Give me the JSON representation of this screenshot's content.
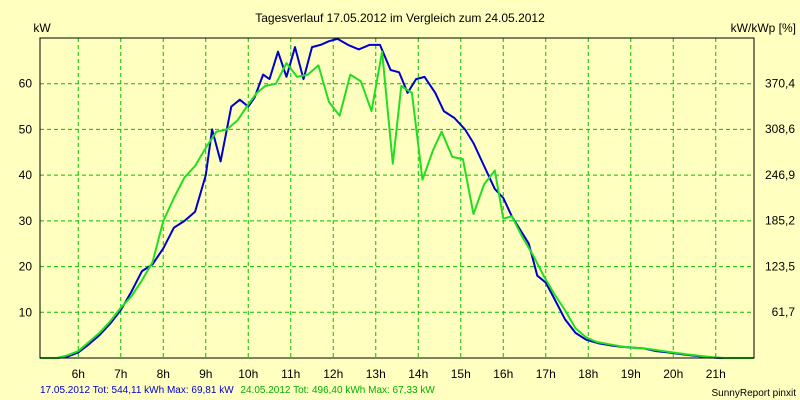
{
  "colors": {
    "background": "#FFFFC0",
    "grid": "#00C000",
    "series_1": "#0000CC",
    "series_2": "#22DD22"
  },
  "chart_data": {
    "type": "line",
    "title": "Tagesverlauf 17.05.2012 im Vergleich zum 24.05.2012",
    "ylabel_left": "kW",
    "ylabel_right": "kW/kWp [%]",
    "xlim": [
      5.1,
      21.9
    ],
    "ylim": [
      0,
      70
    ],
    "x_ticks": [
      6,
      7,
      8,
      9,
      10,
      11,
      12,
      13,
      14,
      15,
      16,
      17,
      18,
      19,
      20,
      21
    ],
    "x_tick_labels": [
      "6h",
      "7h",
      "8h",
      "9h",
      "10h",
      "11h",
      "12h",
      "13h",
      "14h",
      "15h",
      "16h",
      "17h",
      "18h",
      "19h",
      "20h",
      "21h"
    ],
    "y_ticks_left": [
      10,
      20,
      30,
      40,
      50,
      60
    ],
    "y_tick_labels_left": [
      "10",
      "20",
      "30",
      "40",
      "50",
      "60"
    ],
    "y_ticks_right": [
      10.06,
      20.01,
      30.07,
      40.03,
      50.09,
      60.04
    ],
    "y_tick_labels_right": [
      "61,7",
      "123,5",
      "185,2",
      "246,9",
      "308,6",
      "370,4"
    ],
    "grid": true,
    "series": [
      {
        "name": "17.05.2012",
        "color": "#0000CC",
        "x": [
          5.1,
          5.5,
          5.75,
          6.0,
          6.25,
          6.5,
          6.75,
          7.0,
          7.25,
          7.5,
          7.75,
          8.0,
          8.25,
          8.5,
          8.75,
          9.0,
          9.15,
          9.35,
          9.6,
          9.8,
          10.0,
          10.15,
          10.35,
          10.5,
          10.7,
          10.9,
          11.1,
          11.3,
          11.5,
          11.7,
          11.9,
          12.1,
          12.35,
          12.6,
          12.85,
          13.1,
          13.35,
          13.55,
          13.75,
          13.95,
          14.15,
          14.4,
          14.6,
          14.85,
          15.1,
          15.3,
          15.55,
          15.8,
          16.0,
          16.2,
          16.4,
          16.6,
          16.8,
          17.0,
          17.2,
          17.45,
          17.7,
          17.95,
          18.25,
          18.5,
          18.75,
          19.0,
          19.3,
          19.6,
          19.9,
          20.2,
          20.5,
          20.8,
          21.1,
          21.4,
          21.9
        ],
        "y": [
          0,
          0,
          0.3,
          1.2,
          3.0,
          5.0,
          7.5,
          10.5,
          14.5,
          19.0,
          20.5,
          24.0,
          28.5,
          30.0,
          32.0,
          40.0,
          50.0,
          43.0,
          55.0,
          56.5,
          55.0,
          57.0,
          62.0,
          61.0,
          67.0,
          61.5,
          68.0,
          61.0,
          68.0,
          68.5,
          69.3,
          69.8,
          68.5,
          67.5,
          68.5,
          68.5,
          63.0,
          62.5,
          58.0,
          61.0,
          61.5,
          58.0,
          54.0,
          52.5,
          50.0,
          47.0,
          42.0,
          37.0,
          35.0,
          31.0,
          28.0,
          25.0,
          18.0,
          16.5,
          13.0,
          8.5,
          5.5,
          4.0,
          3.2,
          2.8,
          2.5,
          2.3,
          2.1,
          1.5,
          1.2,
          0.8,
          0.5,
          0.2,
          0,
          0,
          0
        ]
      },
      {
        "name": "24.05.2012",
        "color": "#22DD22",
        "x": [
          5.1,
          5.5,
          5.75,
          6.0,
          6.25,
          6.5,
          6.75,
          7.0,
          7.25,
          7.5,
          7.75,
          8.0,
          8.25,
          8.5,
          8.75,
          9.0,
          9.25,
          9.5,
          9.75,
          10.0,
          10.2,
          10.4,
          10.65,
          10.9,
          11.15,
          11.4,
          11.65,
          11.9,
          12.15,
          12.4,
          12.65,
          12.9,
          13.15,
          13.4,
          13.6,
          13.85,
          14.1,
          14.35,
          14.55,
          14.8,
          15.05,
          15.3,
          15.55,
          15.8,
          16.0,
          16.2,
          16.45,
          16.7,
          16.95,
          17.2,
          17.45,
          17.7,
          17.95,
          18.2,
          18.5,
          18.8,
          19.1,
          19.4,
          19.7,
          20.0,
          20.3,
          20.6,
          20.9,
          21.2,
          21.5,
          21.9
        ],
        "y": [
          0,
          0,
          0.6,
          1.5,
          3.5,
          5.5,
          8.0,
          11.0,
          13.5,
          17.0,
          21.0,
          30.0,
          35.0,
          39.5,
          42.0,
          46.0,
          49.5,
          50.0,
          52.0,
          55.5,
          58.0,
          59.5,
          60.0,
          64.5,
          61.5,
          62.0,
          64.0,
          56.0,
          53.0,
          62.0,
          60.5,
          54.0,
          67.0,
          42.5,
          59.5,
          58.0,
          39.0,
          45.5,
          49.5,
          44.0,
          43.5,
          31.5,
          38.0,
          41.0,
          30.5,
          31.0,
          26.5,
          22.5,
          18.0,
          14.0,
          10.5,
          6.5,
          4.5,
          3.5,
          3.0,
          2.5,
          2.2,
          2.0,
          1.6,
          1.2,
          0.8,
          0.5,
          0.2,
          0,
          0,
          0
        ]
      }
    ],
    "footer": {
      "series_1_summary": "17.05.2012 Tot: 544,11 kWh Max: 69,81 kW",
      "series_2_summary": "24.05.2012 Tot: 496,40 kWh Max: 67,33 kW",
      "credit": "SunnyReport pinxit"
    }
  }
}
